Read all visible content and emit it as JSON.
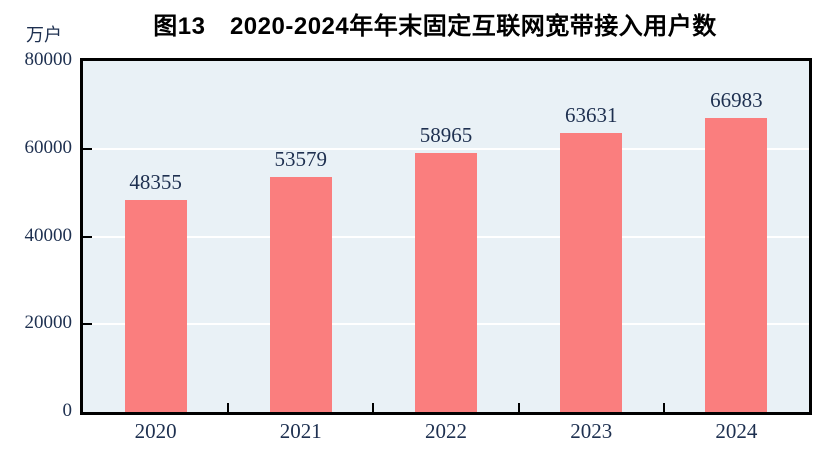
{
  "header": {
    "title": "图13　2020-2024年年末固定互联网宽带接入用户数",
    "unit_label": "万户"
  },
  "chart_data": {
    "type": "bar",
    "title": "图13　2020-2024年年末固定互联网宽带接入用户数",
    "unit": "万户",
    "categories": [
      "2020",
      "2021",
      "2022",
      "2023",
      "2024"
    ],
    "values": [
      48355,
      53579,
      58965,
      63631,
      66983
    ],
    "xlabel": "",
    "ylabel": "万户",
    "ylim": [
      0,
      80000
    ],
    "yticks": [
      0,
      20000,
      40000,
      60000,
      80000
    ],
    "grid": true,
    "gridline_values": [
      20000,
      40000,
      60000
    ],
    "legend": "none",
    "bar_color": "#FA7E7E",
    "plot_bg_color": "#E9F1F6",
    "gridline_color": "#FFFFFF",
    "axis_color": "#000000",
    "label_color": "#1E3050"
  }
}
